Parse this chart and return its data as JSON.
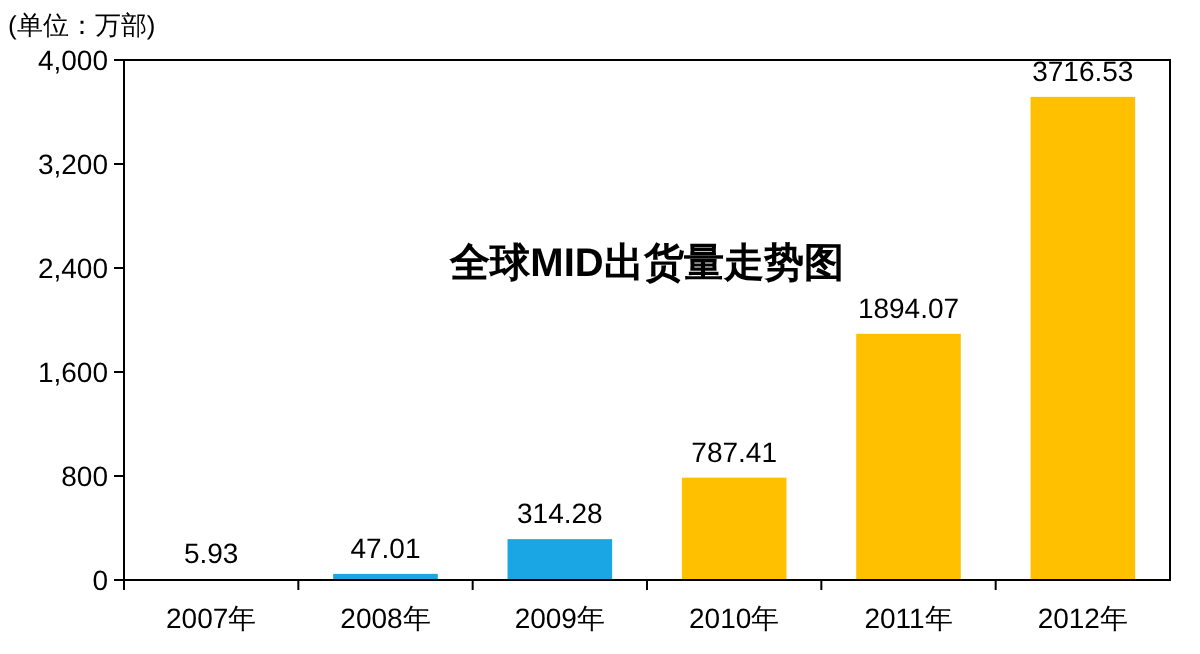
{
  "chart_data": {
    "type": "bar",
    "title": "全球MID出货量走势图",
    "ylabel": "(单位：万部)",
    "categories": [
      "2007年",
      "2008年",
      "2009年",
      "2010年",
      "2011年",
      "2012年"
    ],
    "values": [
      5.93,
      47.01,
      314.28,
      787.41,
      1894.07,
      3716.53
    ],
    "colors": [
      "#1aa6e4",
      "#1aa6e4",
      "#1aa6e4",
      "#ffc000",
      "#ffc000",
      "#ffc000"
    ],
    "ylim": [
      0,
      4000
    ],
    "yticks": [
      0,
      800,
      {
        "value": 1600,
        "label": "1,600"
      },
      {
        "value": 2400,
        "label": "2,400"
      },
      {
        "value": 3200,
        "label": "3,200"
      },
      {
        "value": 4000,
        "label": "4,000"
      }
    ],
    "data_labels": true,
    "grid": false
  }
}
